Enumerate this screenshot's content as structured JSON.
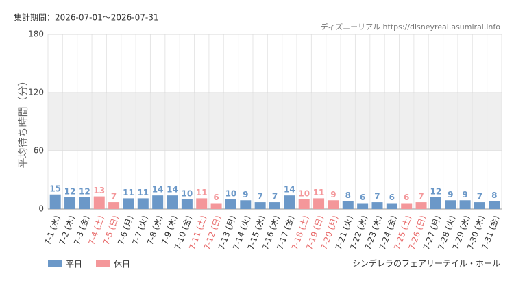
{
  "chart_data": {
    "type": "bar",
    "period": "集計期間：2026-07-01～2026-07-31",
    "source": "ディズニーリアル https://disneyreal.asumirai.info",
    "subtitle": "シンデレラのフェアリーテイル・ホール",
    "y_label": "平均待ち時間（分）",
    "categories": [
      "7-1 (水)",
      "7-2 (木)",
      "7-3 (金)",
      "7-4 (土)",
      "7-5 (日)",
      "7-6 (月)",
      "7-7 (火)",
      "7-8 (水)",
      "7-9 (木)",
      "7-10 (金)",
      "7-11 (土)",
      "7-12 (日)",
      "7-13 (月)",
      "7-14 (火)",
      "7-15 (水)",
      "7-16 (木)",
      "7-17 (金)",
      "7-18 (土)",
      "7-19 (日)",
      "7-20 (月)",
      "7-21 (火)",
      "7-22 (水)",
      "7-23 (木)",
      "7-24 (金)",
      "7-25 (土)",
      "7-26 (日)",
      "7-27 (月)",
      "7-28 (火)",
      "7-29 (水)",
      "7-30 (木)",
      "7-31 (金)"
    ],
    "series": [
      {
        "name": "平日",
        "color": "#6b98c8",
        "values": [
          15,
          12,
          12,
          null,
          null,
          11,
          11,
          14,
          14,
          10,
          null,
          null,
          10,
          9,
          7,
          7,
          14,
          null,
          null,
          null,
          8,
          6,
          7,
          6,
          null,
          null,
          12,
          9,
          9,
          7,
          8
        ]
      },
      {
        "name": "休日",
        "color": "#f4979a",
        "values": [
          null,
          null,
          null,
          13,
          7,
          null,
          null,
          null,
          null,
          null,
          11,
          6,
          null,
          null,
          null,
          null,
          null,
          10,
          11,
          9,
          null,
          null,
          null,
          null,
          6,
          7,
          null,
          null,
          null,
          null,
          null
        ]
      }
    ],
    "ylim": [
      0,
      180
    ],
    "yticks": [
      0,
      60,
      120,
      180
    ],
    "grid": true
  }
}
